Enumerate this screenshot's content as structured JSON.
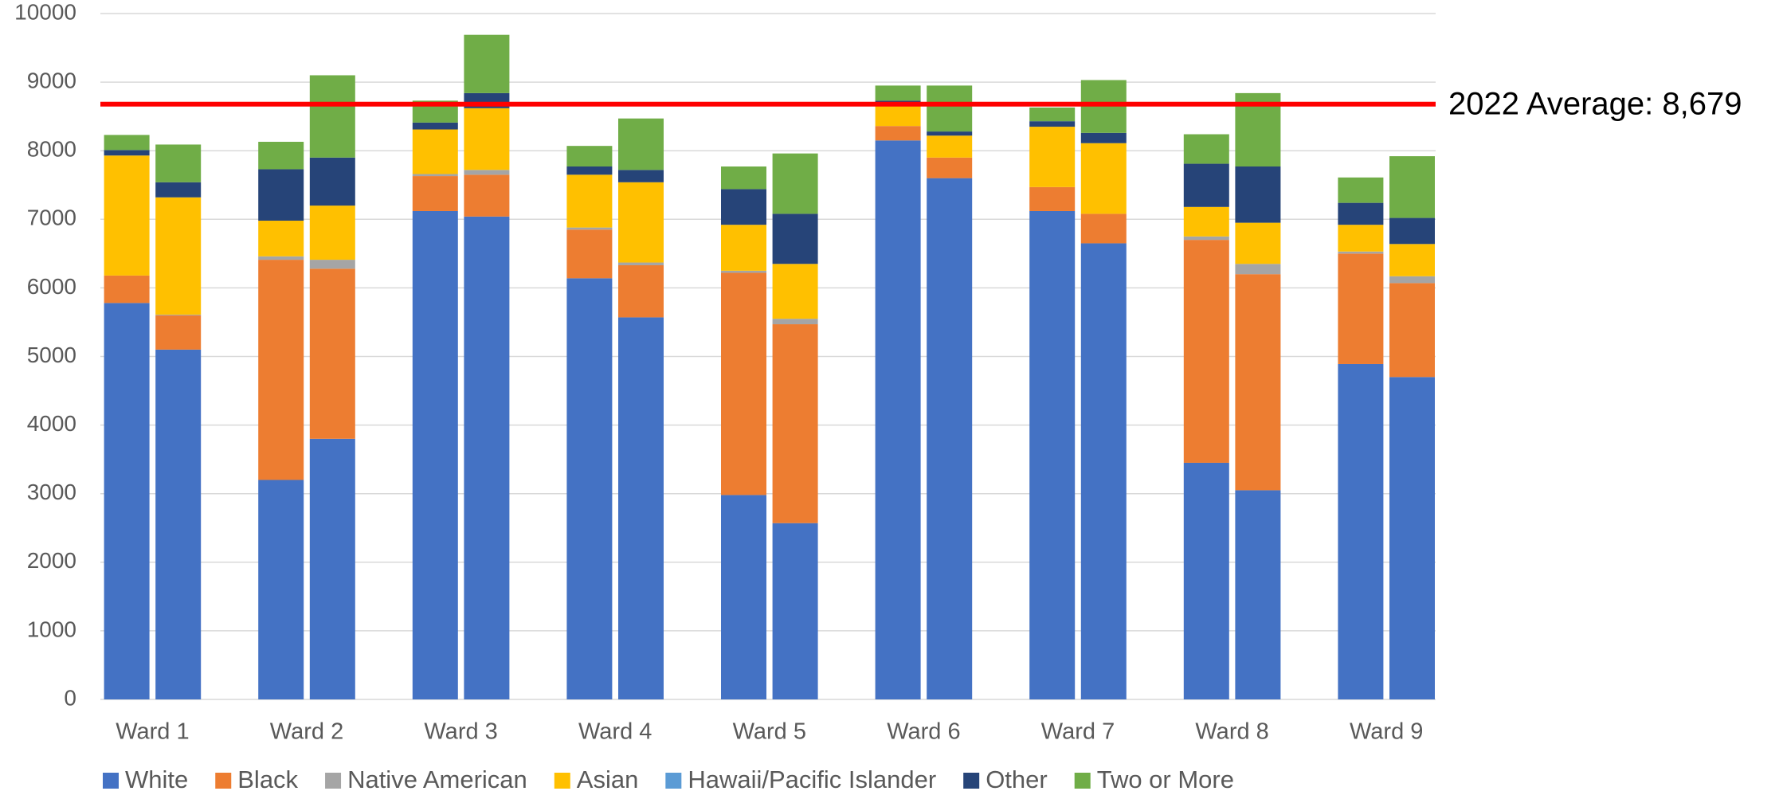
{
  "chart_data": {
    "type": "stacked_pair_bar",
    "categories": [
      "Ward 1",
      "Ward 2",
      "Ward 3",
      "Ward 4",
      "Ward 5",
      "Ward 6",
      "Ward 7",
      "Ward 8",
      "Ward 9"
    ],
    "series": [
      {
        "name": "White",
        "color": "#4472c4",
        "values": [
          [
            5780,
            5100
          ],
          [
            3200,
            3800
          ],
          [
            7120,
            7040
          ],
          [
            6140,
            5570
          ],
          [
            2980,
            2570
          ],
          [
            8150,
            7600
          ],
          [
            7120,
            6650
          ],
          [
            3450,
            3050
          ],
          [
            4890,
            4700
          ]
        ]
      },
      {
        "name": "Black",
        "color": "#ed7d31",
        "values": [
          [
            400,
            500
          ],
          [
            3210,
            2480
          ],
          [
            510,
            610
          ],
          [
            710,
            760
          ],
          [
            3240,
            2900
          ],
          [
            210,
            300
          ],
          [
            350,
            430
          ],
          [
            3250,
            3150
          ],
          [
            1610,
            1370
          ]
        ]
      },
      {
        "name": "Native American",
        "color": "#a5a5a5",
        "values": [
          [
            0,
            10
          ],
          [
            50,
            130
          ],
          [
            30,
            70
          ],
          [
            30,
            40
          ],
          [
            30,
            80
          ],
          [
            0,
            0
          ],
          [
            0,
            0
          ],
          [
            50,
            150
          ],
          [
            30,
            100
          ]
        ]
      },
      {
        "name": "Asian",
        "color": "#ffc000",
        "values": [
          [
            1750,
            1710
          ],
          [
            520,
            790
          ],
          [
            650,
            900
          ],
          [
            770,
            1170
          ],
          [
            670,
            800
          ],
          [
            290,
            320
          ],
          [
            880,
            1030
          ],
          [
            430,
            600
          ],
          [
            390,
            470
          ]
        ]
      },
      {
        "name": "Hawaii/Pacific Islander",
        "color": "#5b9bd5",
        "values": [
          [
            0,
            0
          ],
          [
            0,
            0
          ],
          [
            0,
            0
          ],
          [
            0,
            0
          ],
          [
            0,
            0
          ],
          [
            0,
            0
          ],
          [
            0,
            0
          ],
          [
            0,
            0
          ],
          [
            0,
            0
          ]
        ]
      },
      {
        "name": "Other",
        "color": "#264478",
        "values": [
          [
            80,
            220
          ],
          [
            750,
            700
          ],
          [
            100,
            220
          ],
          [
            120,
            180
          ],
          [
            520,
            730
          ],
          [
            80,
            60
          ],
          [
            80,
            150
          ],
          [
            630,
            820
          ],
          [
            320,
            380
          ]
        ]
      },
      {
        "name": "Two or More",
        "color": "#70ad47",
        "values": [
          [
            220,
            550
          ],
          [
            400,
            1200
          ],
          [
            320,
            850
          ],
          [
            300,
            750
          ],
          [
            330,
            880
          ],
          [
            220,
            670
          ],
          [
            200,
            770
          ],
          [
            430,
            1070
          ],
          [
            370,
            900
          ]
        ]
      }
    ],
    "ylim": [
      0,
      10000
    ],
    "yticks": [
      0,
      1000,
      2000,
      3000,
      4000,
      5000,
      6000,
      7000,
      8000,
      9000,
      10000
    ],
    "grid": true,
    "legend": "bottom",
    "reference_line": {
      "value": 8679,
      "label": "2022 Average: 8,679",
      "color": "#ff0000"
    }
  }
}
